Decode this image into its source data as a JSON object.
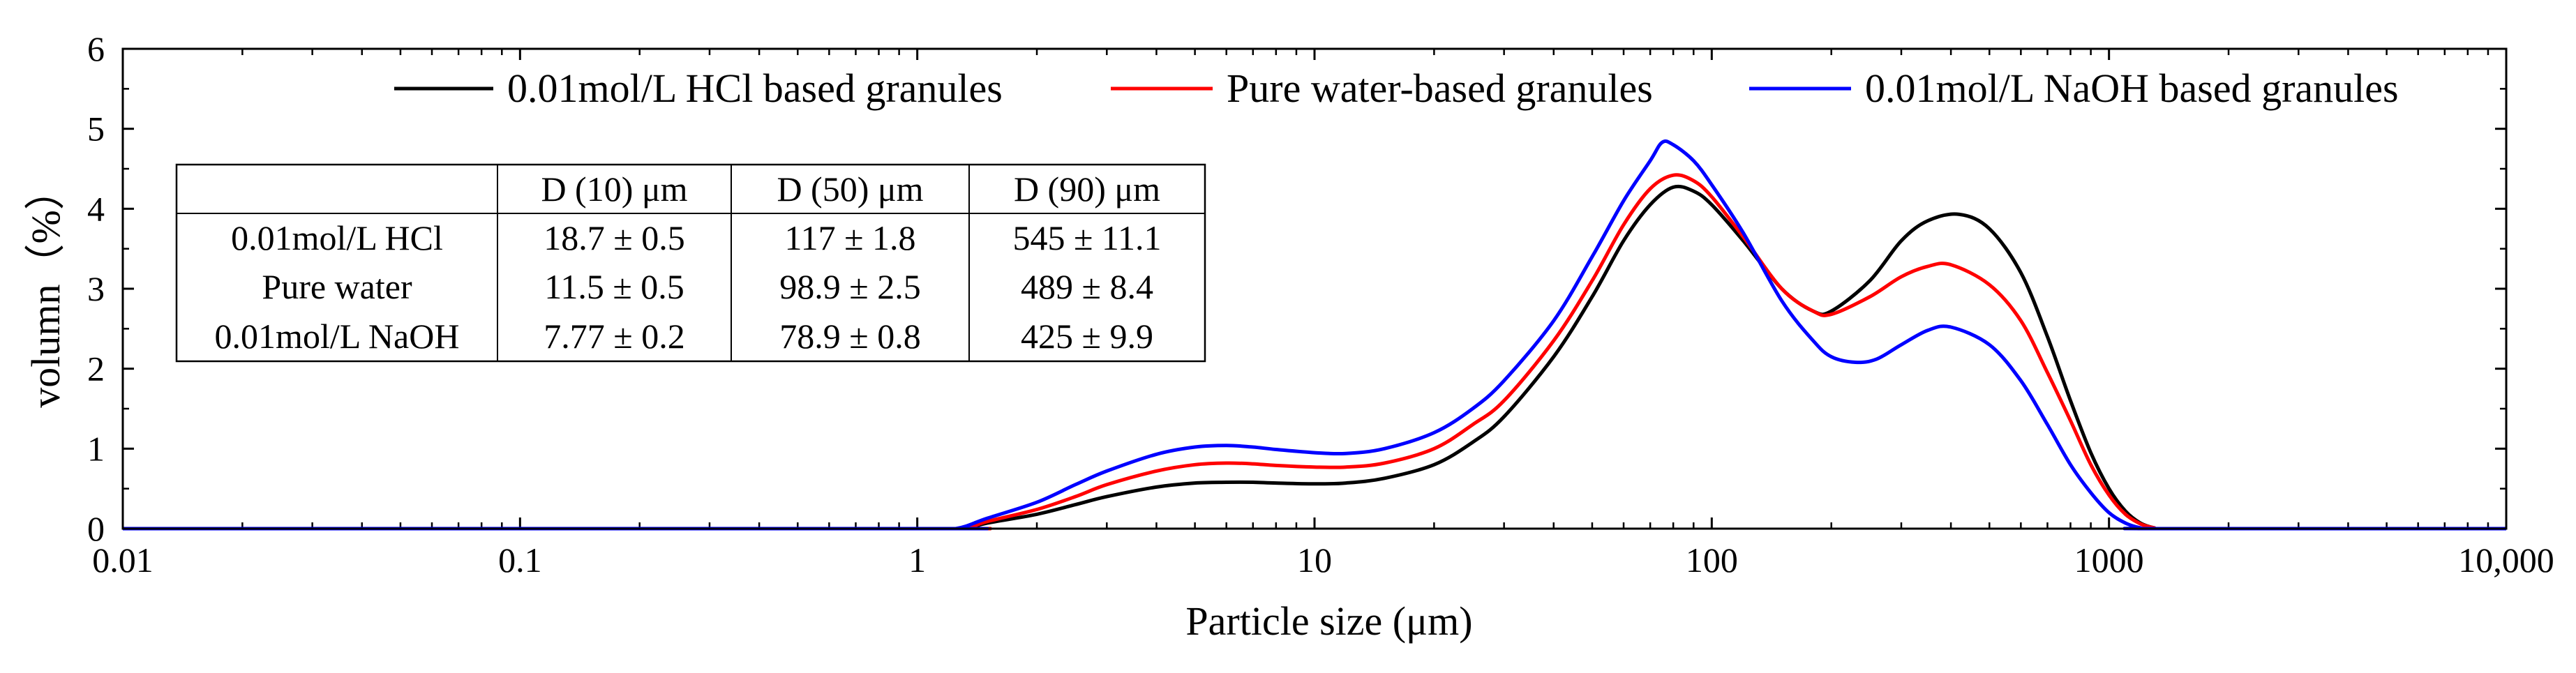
{
  "chart_data": {
    "type": "line",
    "title": "",
    "xlabel": "Particle size (μm)",
    "ylabel": "volumn（%）",
    "xscale": "log",
    "xlim": [
      0.01,
      10000
    ],
    "ylim": [
      0,
      6
    ],
    "grid": false,
    "legend_position": "top-right",
    "x_ticks": [
      {
        "value": 0.01,
        "label": "0.01"
      },
      {
        "value": 0.1,
        "label": "0.1"
      },
      {
        "value": 1,
        "label": "1"
      },
      {
        "value": 10,
        "label": "10"
      },
      {
        "value": 100,
        "label": "100"
      },
      {
        "value": 1000,
        "label": "1000"
      },
      {
        "value": 10000,
        "label": "10,000"
      }
    ],
    "y_ticks": [
      {
        "value": 0,
        "label": "0"
      },
      {
        "value": 1,
        "label": "1"
      },
      {
        "value": 2,
        "label": "2"
      },
      {
        "value": 3,
        "label": "3"
      },
      {
        "value": 4,
        "label": "4"
      },
      {
        "value": 5,
        "label": "5"
      },
      {
        "value": 6,
        "label": "6"
      }
    ],
    "series": [
      {
        "name": "0.01mol/L HCl based granules",
        "color": "#000000",
        "points": [
          [
            0.01,
            0
          ],
          [
            1.0,
            0
          ],
          [
            1.3,
            0
          ],
          [
            1.5,
            0.07
          ],
          [
            2,
            0.18
          ],
          [
            2.5,
            0.3
          ],
          [
            3,
            0.4
          ],
          [
            4,
            0.52
          ],
          [
            5,
            0.57
          ],
          [
            6,
            0.58
          ],
          [
            7,
            0.58
          ],
          [
            8,
            0.57
          ],
          [
            10,
            0.56
          ],
          [
            12,
            0.57
          ],
          [
            15,
            0.63
          ],
          [
            20,
            0.8
          ],
          [
            25,
            1.08
          ],
          [
            30,
            1.4
          ],
          [
            40,
            2.15
          ],
          [
            50,
            2.9
          ],
          [
            60,
            3.6
          ],
          [
            70,
            4.05
          ],
          [
            80,
            4.27
          ],
          [
            90,
            4.22
          ],
          [
            100,
            4.05
          ],
          [
            120,
            3.6
          ],
          [
            150,
            3.0
          ],
          [
            180,
            2.72
          ],
          [
            200,
            2.72
          ],
          [
            250,
            3.1
          ],
          [
            300,
            3.6
          ],
          [
            350,
            3.85
          ],
          [
            420,
            3.93
          ],
          [
            500,
            3.75
          ],
          [
            600,
            3.2
          ],
          [
            700,
            2.4
          ],
          [
            800,
            1.6
          ],
          [
            900,
            0.95
          ],
          [
            1000,
            0.5
          ],
          [
            1100,
            0.22
          ],
          [
            1200,
            0.07
          ],
          [
            1300,
            0.01
          ],
          [
            1400,
            0
          ],
          [
            10000,
            0
          ]
        ]
      },
      {
        "name": "Pure water-based granules",
        "color": "#ff0000",
        "points": [
          [
            0.01,
            0
          ],
          [
            1.0,
            0
          ],
          [
            1.3,
            0
          ],
          [
            1.5,
            0.09
          ],
          [
            2,
            0.24
          ],
          [
            2.5,
            0.4
          ],
          [
            3,
            0.55
          ],
          [
            4,
            0.72
          ],
          [
            5,
            0.8
          ],
          [
            6,
            0.82
          ],
          [
            7,
            0.81
          ],
          [
            8,
            0.79
          ],
          [
            10,
            0.77
          ],
          [
            12,
            0.77
          ],
          [
            15,
            0.82
          ],
          [
            20,
            1.0
          ],
          [
            25,
            1.3
          ],
          [
            30,
            1.6
          ],
          [
            40,
            2.35
          ],
          [
            50,
            3.1
          ],
          [
            60,
            3.8
          ],
          [
            70,
            4.25
          ],
          [
            80,
            4.42
          ],
          [
            90,
            4.35
          ],
          [
            100,
            4.15
          ],
          [
            120,
            3.65
          ],
          [
            150,
            3.0
          ],
          [
            180,
            2.72
          ],
          [
            200,
            2.68
          ],
          [
            250,
            2.9
          ],
          [
            300,
            3.15
          ],
          [
            350,
            3.28
          ],
          [
            400,
            3.3
          ],
          [
            500,
            3.05
          ],
          [
            600,
            2.6
          ],
          [
            700,
            1.95
          ],
          [
            800,
            1.35
          ],
          [
            900,
            0.8
          ],
          [
            1000,
            0.42
          ],
          [
            1100,
            0.18
          ],
          [
            1200,
            0.06
          ],
          [
            1300,
            0.01
          ],
          [
            1400,
            0
          ],
          [
            10000,
            0
          ]
        ]
      },
      {
        "name": "0.01mol/L NaOH based granules",
        "color": "#0000ff",
        "points": [
          [
            0.01,
            0
          ],
          [
            1.0,
            0
          ],
          [
            1.25,
            0
          ],
          [
            1.5,
            0.13
          ],
          [
            2,
            0.33
          ],
          [
            2.5,
            0.55
          ],
          [
            3,
            0.72
          ],
          [
            4,
            0.93
          ],
          [
            5,
            1.02
          ],
          [
            6,
            1.04
          ],
          [
            7,
            1.02
          ],
          [
            8,
            0.99
          ],
          [
            10,
            0.95
          ],
          [
            12,
            0.94
          ],
          [
            15,
            1.0
          ],
          [
            20,
            1.2
          ],
          [
            25,
            1.5
          ],
          [
            30,
            1.85
          ],
          [
            40,
            2.6
          ],
          [
            50,
            3.4
          ],
          [
            60,
            4.1
          ],
          [
            70,
            4.6
          ],
          [
            75,
            4.83
          ],
          [
            80,
            4.8
          ],
          [
            90,
            4.6
          ],
          [
            100,
            4.3
          ],
          [
            120,
            3.7
          ],
          [
            150,
            2.85
          ],
          [
            180,
            2.35
          ],
          [
            200,
            2.15
          ],
          [
            230,
            2.08
          ],
          [
            260,
            2.12
          ],
          [
            300,
            2.3
          ],
          [
            350,
            2.48
          ],
          [
            400,
            2.52
          ],
          [
            500,
            2.3
          ],
          [
            600,
            1.85
          ],
          [
            700,
            1.3
          ],
          [
            800,
            0.8
          ],
          [
            900,
            0.45
          ],
          [
            1000,
            0.2
          ],
          [
            1100,
            0.07
          ],
          [
            1200,
            0.01
          ],
          [
            1300,
            0
          ],
          [
            10000,
            0
          ]
        ]
      }
    ],
    "table": {
      "headers": [
        "",
        "D (10) μm",
        "D (50) μm",
        "D (90) μm"
      ],
      "rows": [
        [
          "0.01mol/L HCl",
          "18.7 ± 0.5",
          "117 ± 1.8",
          "545 ± 11.1"
        ],
        [
          "Pure water",
          "11.5 ± 0.5",
          "98.9 ± 2.5",
          "489 ± 8.4"
        ],
        [
          "0.01mol/L NaOH",
          "7.77 ± 0.2",
          "78.9 ± 0.8",
          "425 ± 9.9"
        ]
      ]
    }
  }
}
